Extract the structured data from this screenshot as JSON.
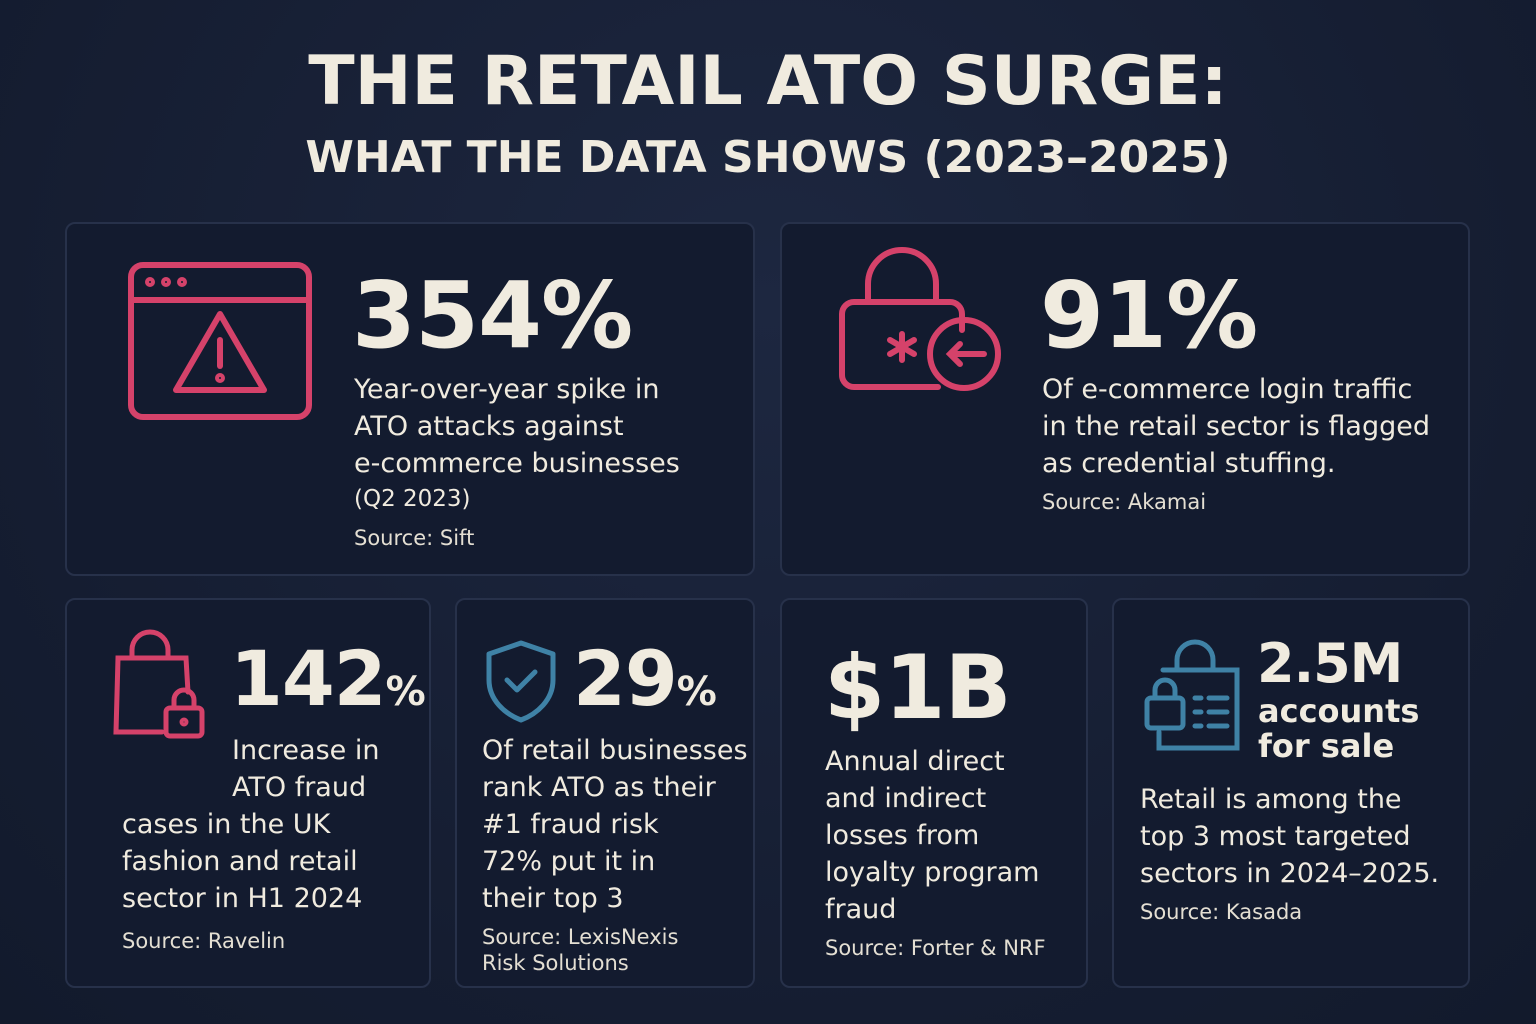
{
  "header": {
    "title": "THE RETAIL ATO SURGE:",
    "subtitle": "WHAT THE DATA SHOWS (2023–2025)"
  },
  "cards": [
    {
      "stat": "354%",
      "lines": [
        "Year-over-year spike in",
        "ATO attacks against",
        "e-commerce businesses"
      ],
      "note": "(Q2 2023)",
      "source": [
        "Source: Sift"
      ]
    },
    {
      "stat": "91%",
      "lines": [
        "Of e-commerce login traffic",
        "in the retail sector is flagged",
        "as credential stuffing."
      ],
      "source": [
        "Source: Akamai"
      ]
    },
    {
      "stat": "142",
      "unit": "%",
      "lines": [
        "Increase in",
        "ATO fraud",
        "cases in the UK",
        "fashion and retail",
        "sector in H1 2024"
      ],
      "source": [
        "Source: Ravelin"
      ]
    },
    {
      "stat": "29",
      "unit": "%",
      "lines": [
        "Of retail businesses",
        "rank ATO as their",
        "#1 fraud risk",
        "72% put it in",
        "their top 3"
      ],
      "source": [
        "Source: LexisNexis",
        "Risk Solutions"
      ]
    },
    {
      "stat": "$1B",
      "lines": [
        "Annual direct",
        "and indirect",
        "losses from",
        "loyalty program",
        "fraud"
      ],
      "source": [
        "Source: Forter & NRF"
      ]
    },
    {
      "stat": "2.5M",
      "substat": [
        "accounts",
        "for sale"
      ],
      "lines": [
        "Retail is among the",
        "top 3 most targeted",
        "sectors in 2024–2025."
      ],
      "source": [
        "Source: Kasada"
      ]
    }
  ]
}
